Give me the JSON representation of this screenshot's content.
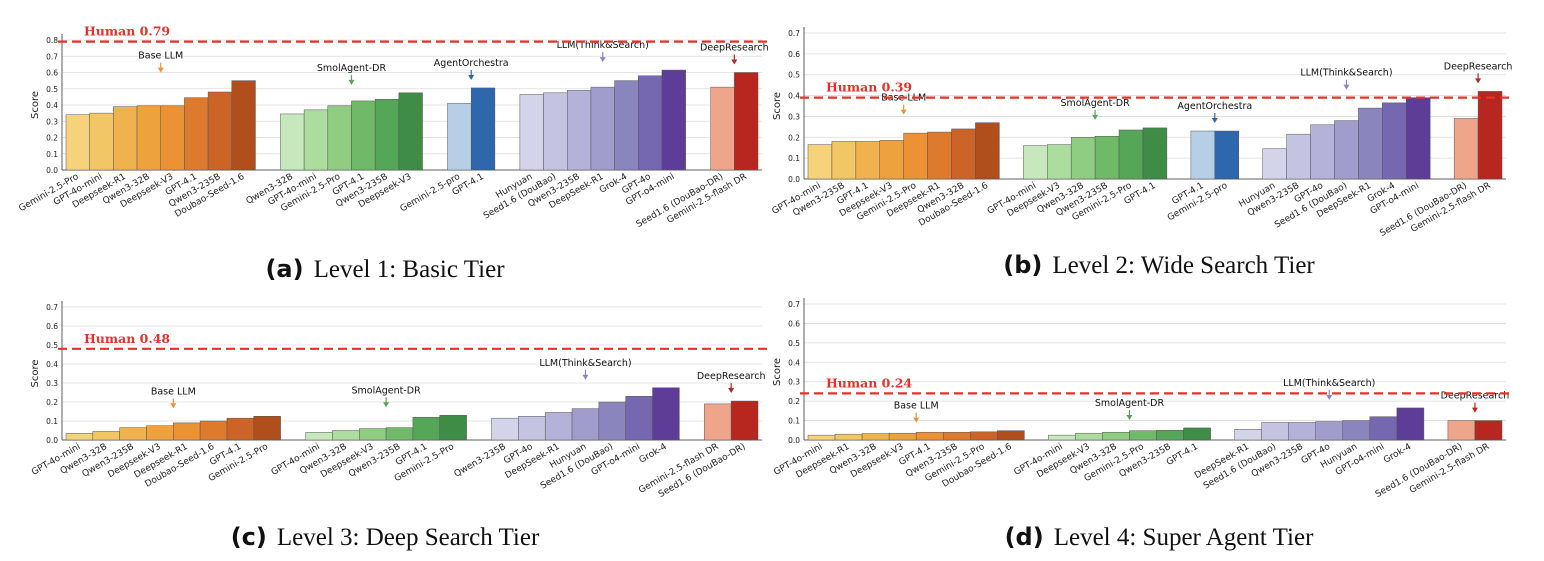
{
  "chart_data": [
    {
      "type": "bar",
      "panel": "a",
      "caption_letter": "(a)",
      "caption_text": "Level 1: Basic Tier",
      "ylabel": "Score",
      "ylim": [
        0,
        0.8
      ],
      "yticks": [
        "0.0",
        "0.1",
        "0.2",
        "0.3",
        "0.4",
        "0.5",
        "0.6",
        "0.7",
        "0.8"
      ],
      "grid": "horizontal",
      "reference_line": {
        "label": "Human 0.79",
        "value": 0.79,
        "color": "#e8302a"
      },
      "groups": [
        {
          "name": "Base LLM",
          "colors": [
            "#f6d27a",
            "#f3c665",
            "#f0b24e",
            "#eea23e",
            "#ea9234",
            "#dd7a2e",
            "#cb6426",
            "#b04f1c"
          ],
          "categories": [
            "Gemini-2.5-Pro",
            "GPT-4o-mini",
            "Deepseek-R1",
            "Qwen3-32B",
            "Deepseek-V3",
            "GPT-4.1",
            "Qwen3-235B",
            "Doubao-Seed-1.6"
          ],
          "values": [
            0.34,
            0.35,
            0.39,
            0.395,
            0.395,
            0.445,
            0.48,
            0.55
          ]
        },
        {
          "name": "SmolAgent-DR",
          "colors": [
            "#c7e8bd",
            "#addc9f",
            "#8fcd82",
            "#6fb968",
            "#55a656",
            "#3e8c45"
          ],
          "categories": [
            "Qwen3-32B",
            "GPT-4o-mini",
            "Gemini-2.5-Pro",
            "GPT-4.1",
            "Qwen3-235B",
            "Deepseek-V3"
          ],
          "values": [
            0.345,
            0.37,
            0.395,
            0.425,
            0.435,
            0.475
          ]
        },
        {
          "name": "AgentOrchestra",
          "colors": [
            "#b6cfe6",
            "#2f67ad"
          ],
          "categories": [
            "Gemini-2.5-pro",
            "GPT-4.1"
          ],
          "values": [
            0.41,
            0.505
          ]
        },
        {
          "name": "LLM(Think&Search)",
          "colors": [
            "#d3d3e9",
            "#c4c3e1",
            "#b4b2d8",
            "#a09dcc",
            "#8b85be",
            "#7668b0",
            "#5e3d98"
          ],
          "categories": [
            "Hunyuan",
            "Seed1.6 (DouBao)",
            "Qwen3-235B",
            "DeepSeek-R1",
            "Grok-4",
            "GPT-4o",
            "GPT-o4-mini"
          ],
          "values": [
            0.465,
            0.475,
            0.49,
            0.51,
            0.55,
            0.58,
            0.615
          ]
        },
        {
          "name": "DeepResearch",
          "colors": [
            "#eea58a",
            "#b7271f"
          ],
          "categories": [
            "Seed1.6 (DouBao-DR)",
            "Gemini-2.5-flash DR"
          ],
          "values": [
            0.51,
            0.6
          ]
        }
      ]
    },
    {
      "type": "bar",
      "panel": "b",
      "caption_letter": "(b)",
      "caption_text": "Level 2: Wide Search Tier",
      "ylabel": "Score",
      "ylim": [
        0,
        0.7
      ],
      "yticks": [
        "0.0",
        "0.1",
        "0.2",
        "0.3",
        "0.4",
        "0.5",
        "0.6",
        "0.7"
      ],
      "grid": "horizontal",
      "reference_line": {
        "label": "Human 0.39",
        "value": 0.39,
        "color": "#e8302a"
      },
      "groups": [
        {
          "name": "Base LLM",
          "colors": [
            "#f6d27a",
            "#f3c665",
            "#f0b24e",
            "#eea23e",
            "#ea9234",
            "#dd7a2e",
            "#cb6426",
            "#b04f1c"
          ],
          "categories": [
            "GPT-4o-mini",
            "Qwen3-235B",
            "GPT-4.1",
            "Deepseek-V3",
            "Gemini-2.5-Pro",
            "Deepseek-R1",
            "Qwen3-32B",
            "Doubao-Seed-1.6"
          ],
          "values": [
            0.165,
            0.18,
            0.18,
            0.185,
            0.22,
            0.225,
            0.24,
            0.27
          ]
        },
        {
          "name": "SmolAgent-DR",
          "colors": [
            "#c7e8bd",
            "#addc9f",
            "#8fcd82",
            "#6fb968",
            "#55a656",
            "#3e8c45"
          ],
          "categories": [
            "GPT-4o-mini",
            "Deepseek-V3",
            "Qwen3-32B",
            "Qwen3-235B",
            "Gemini-2.5-Pro",
            "GPT-4.1"
          ],
          "values": [
            0.16,
            0.165,
            0.2,
            0.205,
            0.235,
            0.245
          ]
        },
        {
          "name": "AgentOrchestra",
          "colors": [
            "#b6cfe6",
            "#2f67ad"
          ],
          "categories": [
            "GPT-4.1",
            "Gemini-2.5-pro"
          ],
          "values": [
            0.23,
            0.23
          ]
        },
        {
          "name": "LLM(Think&Search)",
          "colors": [
            "#d3d3e9",
            "#c4c3e1",
            "#b4b2d8",
            "#a09dcc",
            "#8b85be",
            "#7668b0",
            "#5e3d98"
          ],
          "categories": [
            "Hunyuan",
            "Qwen3-235B",
            "GPT-4o",
            "Seed1.6 (DouBao)",
            "DeepSeek-R1",
            "Grok-4",
            "GPT-o4-mini"
          ],
          "values": [
            0.145,
            0.215,
            0.26,
            0.28,
            0.34,
            0.365,
            0.39
          ]
        },
        {
          "name": "DeepResearch",
          "colors": [
            "#eea58a",
            "#b7271f"
          ],
          "categories": [
            "Seed1.6 (DouBao-DR)",
            "Gemini-2.5-flash DR"
          ],
          "values": [
            0.29,
            0.42
          ]
        }
      ]
    },
    {
      "type": "bar",
      "panel": "c",
      "caption_letter": "(c)",
      "caption_text": "Level 3: Deep Search Tier",
      "ylabel": "Score",
      "ylim": [
        0,
        0.7
      ],
      "yticks": [
        "0.0",
        "0.1",
        "0.2",
        "0.3",
        "0.4",
        "0.5",
        "0.6",
        "0.7"
      ],
      "grid": "horizontal",
      "reference_line": {
        "label": "Human 0.48",
        "value": 0.48,
        "color": "#e8302a"
      },
      "groups": [
        {
          "name": "Base LLM",
          "colors": [
            "#f6d27a",
            "#f3c665",
            "#f0b24e",
            "#eea23e",
            "#ea9234",
            "#dd7a2e",
            "#cb6426",
            "#b04f1c"
          ],
          "categories": [
            "GPT-4o-mini",
            "Qwen3-32B",
            "Qwen3-235B",
            "Deepseek-V3",
            "Deepseek-R1",
            "Doubao-Seed-1.6",
            "GPT-4.1",
            "Gemini-2.5-Pro"
          ],
          "values": [
            0.035,
            0.045,
            0.065,
            0.075,
            0.09,
            0.1,
            0.115,
            0.125
          ]
        },
        {
          "name": "SmolAgent-DR",
          "colors": [
            "#c7e8bd",
            "#addc9f",
            "#8fcd82",
            "#6fb968",
            "#55a656",
            "#3e8c45"
          ],
          "categories": [
            "GPT-4o-mini",
            "Qwen3-32B",
            "Deepseek-V3",
            "Qwen3-235B",
            "GPT-4.1",
            "Gemini-2.5-Pro"
          ],
          "values": [
            0.04,
            0.05,
            0.06,
            0.065,
            0.12,
            0.13
          ]
        },
        {
          "name": "LLM(Think&Search)",
          "colors": [
            "#d3d3e9",
            "#c4c3e1",
            "#b4b2d8",
            "#a09dcc",
            "#8b85be",
            "#7668b0",
            "#5e3d98"
          ],
          "categories": [
            "Qwen3-235B",
            "GPT-4o",
            "DeepSeek-R1",
            "Hunyuan",
            "Seed1.6 (DouBao)",
            "GPT-o4-mini",
            "Grok-4"
          ],
          "values": [
            0.115,
            0.125,
            0.145,
            0.165,
            0.2,
            0.23,
            0.275
          ]
        },
        {
          "name": "DeepResearch",
          "colors": [
            "#eea58a",
            "#b7271f"
          ],
          "categories": [
            "Gemini-2.5-flash DR",
            "Seed1.6 (DouBao-DR)"
          ],
          "values": [
            0.19,
            0.205
          ]
        }
      ]
    },
    {
      "type": "bar",
      "panel": "d",
      "caption_letter": "(d)",
      "caption_text": "Level 4: Super Agent Tier",
      "ylabel": "Score",
      "ylim": [
        0,
        0.7
      ],
      "yticks": [
        "0.0",
        "0.1",
        "0.2",
        "0.3",
        "0.4",
        "0.5",
        "0.6",
        "0.7"
      ],
      "grid": "horizontal",
      "reference_line": {
        "label": "Human 0.24",
        "value": 0.24,
        "color": "#e8302a"
      },
      "groups": [
        {
          "name": "Base LLM",
          "colors": [
            "#f6d27a",
            "#f3c665",
            "#f0b24e",
            "#eea23e",
            "#ea9234",
            "#dd7a2e",
            "#cb6426",
            "#b04f1c"
          ],
          "categories": [
            "GPT-4o-mini",
            "Deepseek-R1",
            "Qwen3-32B",
            "Deepseek-V3",
            "GPT-4.1",
            "Qwen3-235B",
            "Gemini-2.5-Pro",
            "Doubao-Seed-1.6"
          ],
          "values": [
            0.025,
            0.03,
            0.033,
            0.035,
            0.04,
            0.04,
            0.042,
            0.048
          ]
        },
        {
          "name": "SmolAgent-DR",
          "colors": [
            "#c7e8bd",
            "#addc9f",
            "#8fcd82",
            "#6fb968",
            "#55a656",
            "#3e8c45"
          ],
          "categories": [
            "GPT-4o-mini",
            "Deepseek-V3",
            "Qwen3-32B",
            "Gemini-2.5-Pro",
            "Qwen3-235B",
            "GPT-4.1"
          ],
          "values": [
            0.025,
            0.035,
            0.04,
            0.048,
            0.05,
            0.062
          ]
        },
        {
          "name": "LLM(Think&Search)",
          "colors": [
            "#d3d3e9",
            "#c4c3e1",
            "#b4b2d8",
            "#a09dcc",
            "#8b85be",
            "#7668b0",
            "#5e3d98"
          ],
          "categories": [
            "DeepSeek-R1",
            "Seed1.6 (DouBao)",
            "Qwen3-235B",
            "GPT-4o",
            "Hunyuan",
            "GPT-o4-mini",
            "Grok-4"
          ],
          "values": [
            0.055,
            0.09,
            0.09,
            0.095,
            0.1,
            0.12,
            0.165
          ]
        },
        {
          "name": "DeepResearch",
          "colors": [
            "#eea58a",
            "#b7271f"
          ],
          "categories": [
            "Seed1.6 (DouBao-DR)",
            "Gemini-2.5-flash DR"
          ],
          "values": [
            0.1,
            0.1
          ]
        }
      ]
    }
  ]
}
